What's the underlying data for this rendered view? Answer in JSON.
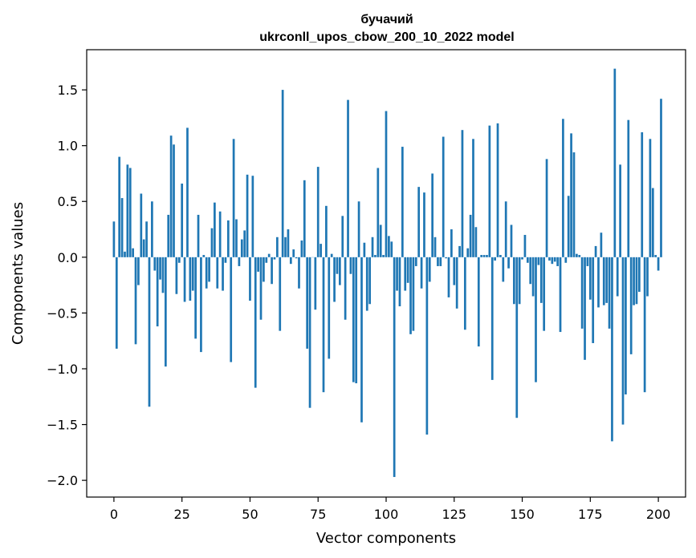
{
  "chart_data": {
    "type": "bar",
    "title": [
      "бучачий",
      "ukrconll_upos_cbow_200_10_2022 model"
    ],
    "xlabel": "Vector components",
    "ylabel": "Components values",
    "xlim": [
      -10,
      210
    ],
    "ylim": [
      -2.15,
      1.86
    ],
    "xticks": [
      0,
      25,
      50,
      75,
      100,
      125,
      150,
      175,
      200
    ],
    "yticks": [
      -2.0,
      -1.5,
      -1.0,
      -0.5,
      0.0,
      0.5,
      1.0,
      1.5
    ],
    "ytick_labels": [
      "−2.0",
      "−1.5",
      "−1.0",
      "−0.5",
      "0.0",
      "0.5",
      "1.0",
      "1.5"
    ],
    "grid": false,
    "bar_color": "#1f77b4",
    "values": [
      0.32,
      -0.82,
      0.9,
      0.53,
      0.05,
      0.83,
      0.8,
      0.08,
      -0.78,
      -0.25,
      0.57,
      0.16,
      0.32,
      -1.34,
      0.5,
      -0.12,
      -0.62,
      -0.2,
      -0.32,
      -0.98,
      0.38,
      1.09,
      1.01,
      -0.33,
      -0.05,
      0.66,
      -0.4,
      1.16,
      -0.39,
      -0.3,
      -0.73,
      0.38,
      -0.85,
      0.02,
      -0.28,
      -0.22,
      0.26,
      0.49,
      -0.28,
      0.41,
      -0.3,
      -0.05,
      0.33,
      -0.94,
      1.06,
      0.34,
      -0.08,
      0.16,
      0.24,
      0.74,
      -0.39,
      0.73,
      -1.17,
      -0.13,
      -0.56,
      -0.22,
      -0.05,
      0.03,
      -0.24,
      -0.02,
      0.18,
      -0.66,
      1.5,
      0.18,
      0.25,
      -0.06,
      0.07,
      -0.01,
      -0.28,
      0.15,
      0.69,
      -0.82,
      -1.35,
      0.0,
      -0.47,
      0.81,
      0.12,
      -1.21,
      0.46,
      -0.91,
      0.03,
      -0.4,
      -0.15,
      -0.25,
      0.37,
      -0.56,
      1.41,
      -0.15,
      -1.12,
      -1.13,
      0.5,
      -1.48,
      0.13,
      -0.48,
      -0.42,
      0.18,
      0.02,
      0.8,
      0.29,
      0.02,
      1.31,
      0.19,
      0.14,
      -1.97,
      -0.3,
      -0.44,
      0.99,
      -0.3,
      -0.23,
      -0.69,
      -0.66,
      -0.08,
      0.63,
      -0.28,
      0.58,
      -1.59,
      -0.22,
      0.75,
      0.18,
      -0.08,
      -0.08,
      1.08,
      -0.01,
      -0.36,
      0.25,
      -0.25,
      -0.46,
      0.1,
      1.14,
      -0.65,
      0.08,
      0.38,
      1.06,
      0.27,
      -0.8,
      0.02,
      0.02,
      0.02,
      1.18,
      -1.1,
      -0.03,
      1.2,
      0.02,
      -0.22,
      0.5,
      -0.1,
      0.29,
      -0.42,
      -1.44,
      -0.42,
      -0.02,
      0.2,
      -0.05,
      -0.24,
      -0.35,
      -1.12,
      -0.07,
      -0.41,
      -0.66,
      0.88,
      -0.03,
      -0.06,
      -0.04,
      -0.08,
      -0.67,
      1.24,
      -0.05,
      0.55,
      1.11,
      0.94,
      0.03,
      0.02,
      -0.64,
      -0.92,
      -0.08,
      -0.38,
      -0.77,
      0.1,
      -0.45,
      0.22,
      -0.43,
      -0.41,
      -0.64,
      -1.65,
      1.69,
      -0.35,
      0.83,
      -1.5,
      -1.23,
      1.23,
      -0.87,
      -0.43,
      -0.42,
      -0.31,
      1.12,
      -1.21,
      -0.35,
      1.06,
      0.62,
      0.02,
      -0.12,
      1.42
    ]
  }
}
